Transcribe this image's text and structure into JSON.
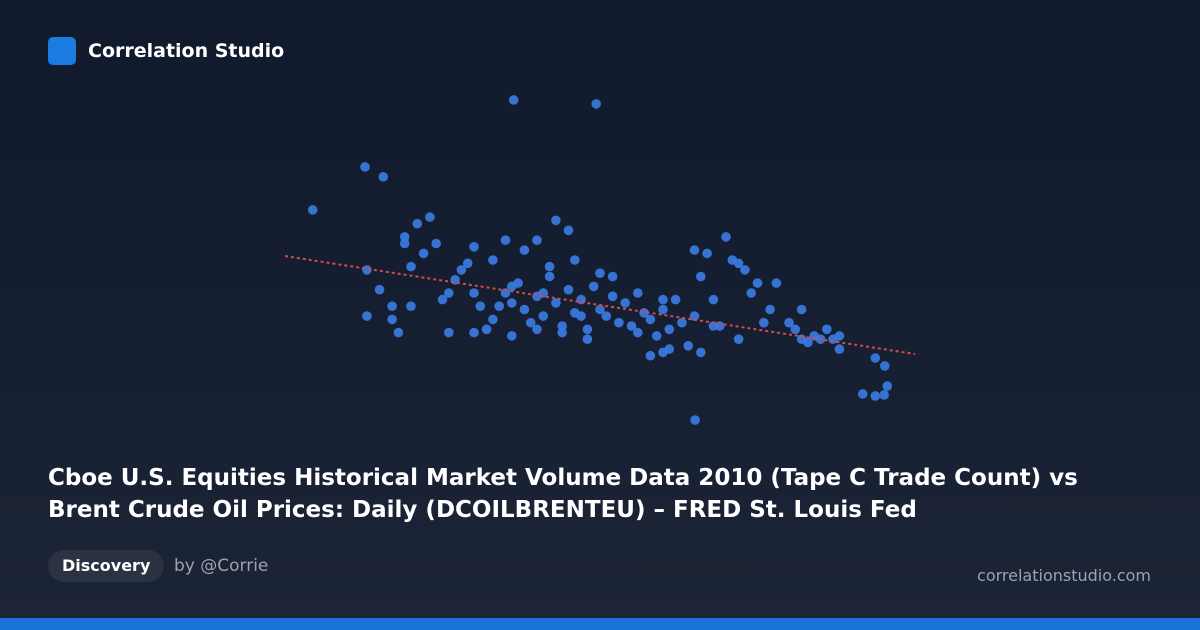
{
  "brand": "Correlation Studio",
  "chart_data": {
    "type": "scatter",
    "title": "Cboe U.S. Equities Historical Market Volume Data 2010 (Tape C Trade Count) vs Brent Crude Oil Prices: Daily (DCOILBRENTEU) – FRED St. Louis Fed",
    "color": "#3a7be0",
    "xlim": [
      0,
      100
    ],
    "ylim": [
      0,
      100
    ],
    "x": [
      36.3,
      49.4,
      12.7,
      15.6,
      4.4,
      65.1,
      91.7,
      93.7,
      95.1,
      95.6,
      95.2,
      93.7,
      13,
      13,
      15,
      17,
      17,
      19,
      19,
      20,
      21,
      22,
      23,
      24,
      25,
      26,
      27,
      28,
      29,
      30,
      31,
      30,
      26,
      20,
      18,
      32,
      33,
      34,
      35,
      36,
      37,
      38,
      39,
      40,
      41,
      42,
      43,
      44,
      45,
      46,
      47,
      48,
      49,
      50,
      51,
      52,
      53,
      54,
      55,
      36,
      40,
      44,
      48,
      38,
      42,
      46,
      50,
      56,
      57,
      33,
      35,
      40,
      45,
      52,
      43,
      30,
      36,
      41,
      47,
      58,
      59,
      60,
      61,
      62,
      63,
      64,
      65,
      66,
      67,
      68,
      69,
      65,
      66,
      70,
      71,
      72,
      73,
      74,
      75,
      76,
      77,
      61,
      58,
      56,
      60,
      68,
      72,
      60,
      80,
      81,
      82,
      83,
      84,
      85,
      86,
      87,
      88,
      88,
      82,
      78
    ],
    "y": [
      98.5,
      97.3,
      78.2,
      75.2,
      65.2,
      1.5,
      9.4,
      8.8,
      9.1,
      11.8,
      17.9,
      20.3,
      47,
      33,
      41,
      36,
      32,
      55,
      57,
      48,
      61,
      52,
      63,
      55,
      38,
      40,
      44,
      47,
      49,
      40,
      36,
      28,
      28,
      36,
      28,
      29,
      32,
      36,
      40,
      37,
      43,
      35,
      31,
      39,
      33,
      45,
      37,
      30,
      41,
      34,
      38,
      29,
      42,
      35,
      33,
      39,
      31,
      37,
      30,
      27,
      29,
      28,
      26,
      53,
      48,
      50,
      46,
      40,
      34,
      50,
      56,
      56,
      59,
      45,
      62,
      54,
      42,
      40,
      33,
      32,
      27,
      35,
      29,
      38,
      31,
      24,
      33,
      45,
      52,
      38,
      30,
      53,
      22,
      57,
      50,
      49,
      47,
      40,
      43,
      31,
      35,
      23,
      21,
      28,
      38,
      30,
      26,
      22,
      31,
      29,
      26,
      25,
      27,
      26,
      29,
      26,
      27,
      23,
      35,
      43
    ],
    "trend": {
      "color": "#d9484a",
      "x": [
        0,
        100
      ],
      "y": [
        51.2,
        21.5
      ]
    }
  },
  "tag": "Discovery",
  "author": "by @Corrie",
  "site": "correlationstudio.com"
}
